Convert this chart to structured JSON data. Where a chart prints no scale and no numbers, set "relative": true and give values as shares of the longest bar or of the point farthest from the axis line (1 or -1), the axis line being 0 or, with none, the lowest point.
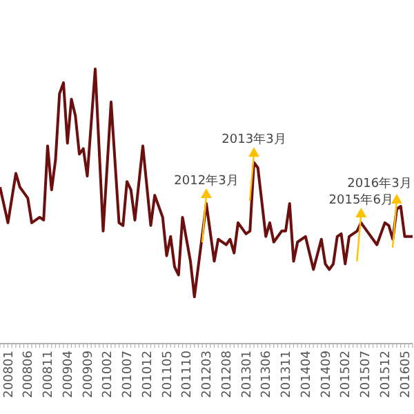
{
  "chart_data": {
    "type": "line",
    "relative": true,
    "x": [
      "2007-11",
      "2008-01",
      "2008-03",
      "2008-04",
      "2008-06",
      "2008-07",
      "2008-09",
      "2008-10",
      "2008-11",
      "2008-12",
      "2009-01",
      "2009-02",
      "2009-03",
      "2009-04",
      "2009-05",
      "2009-06",
      "2009-07",
      "2009-08",
      "2009-09",
      "2009-11",
      "2010-01",
      "2010-03",
      "2010-05",
      "2010-06",
      "2010-07",
      "2010-08",
      "2010-09",
      "2010-11",
      "2011-01",
      "2011-02",
      "2011-04",
      "2011-05",
      "2011-06",
      "2011-07",
      "2011-08",
      "2011-09",
      "2011-11",
      "2011-12",
      "2012-03",
      "2012-05",
      "2012-06",
      "2012-08",
      "2012-09",
      "2012-10",
      "2012-11",
      "2013-01",
      "2013-02",
      "2013-03",
      "2013-04",
      "2013-06",
      "2013-07",
      "2013-08",
      "2013-10",
      "2013-11",
      "2013-12",
      "2014-01",
      "2014-02",
      "2014-04",
      "2014-06",
      "2014-08",
      "2014-09",
      "2014-10",
      "2014-11",
      "2014-12",
      "2015-01",
      "2015-02",
      "2015-03",
      "2015-05",
      "2015-06",
      "2015-07",
      "2015-08",
      "2015-10",
      "2015-12",
      "2016-01",
      "2016-02",
      "2016-03",
      "2016-04",
      "2016-05",
      "2016-07"
    ],
    "series": [
      {
        "color": "#6b0f0f",
        "values": [
          0.57,
          0.44,
          0.62,
          0.57,
          0.53,
          0.44,
          0.46,
          0.45,
          0.72,
          0.56,
          0.67,
          0.91,
          0.95,
          0.73,
          0.89,
          0.83,
          0.69,
          0.71,
          0.61,
          1.0,
          0.41,
          0.88,
          0.44,
          0.43,
          0.59,
          0.56,
          0.45,
          0.72,
          0.43,
          0.54,
          0.46,
          0.32,
          0.39,
          0.28,
          0.25,
          0.46,
          0.3,
          0.17,
          0.51,
          0.3,
          0.38,
          0.36,
          0.38,
          0.33,
          0.44,
          0.4,
          0.41,
          0.66,
          0.64,
          0.39,
          0.44,
          0.37,
          0.41,
          0.41,
          0.51,
          0.3,
          0.37,
          0.39,
          0.27,
          0.38,
          0.29,
          0.27,
          0.29,
          0.39,
          0.4,
          0.29,
          0.39,
          0.41,
          0.44,
          0.42,
          0.4,
          0.36,
          0.44,
          0.43,
          0.38,
          0.49,
          0.5,
          0.39,
          0.39
        ]
      }
    ],
    "xlim": [
      "2007-11",
      "2016-07"
    ],
    "xticks": [
      {
        "value": "2008-01",
        "label": "200801"
      },
      {
        "value": "2008-06",
        "label": "200806"
      },
      {
        "value": "2008-11",
        "label": "200811"
      },
      {
        "value": "2009-04",
        "label": "200904"
      },
      {
        "value": "2009-09",
        "label": "200909"
      },
      {
        "value": "2010-02",
        "label": "201002"
      },
      {
        "value": "2010-07",
        "label": "201007"
      },
      {
        "value": "2010-12",
        "label": "201012"
      },
      {
        "value": "2011-05",
        "label": "201105"
      },
      {
        "value": "2011-10",
        "label": "201110"
      },
      {
        "value": "2012-03",
        "label": "201203"
      },
      {
        "value": "2012-08",
        "label": "201208"
      },
      {
        "value": "2013-01",
        "label": "201301"
      },
      {
        "value": "2013-06",
        "label": "201306"
      },
      {
        "value": "2013-11",
        "label": "201311"
      },
      {
        "value": "2014-04",
        "label": "201404"
      },
      {
        "value": "2014-09",
        "label": "201409"
      },
      {
        "value": "2015-02",
        "label": "201502"
      },
      {
        "value": "2015-07",
        "label": "201507"
      },
      {
        "value": "2015-12",
        "label": "201512"
      },
      {
        "value": "2016-05",
        "label": "201605"
      }
    ],
    "annotations": [
      {
        "text": "2012年3月",
        "x": "2012-03",
        "y": 0.51
      },
      {
        "text": "2013年3月",
        "x": "2013-03",
        "y": 0.66
      },
      {
        "text": "2015年6月",
        "x": "2015-06",
        "y": 0.44
      },
      {
        "text": "2016年3月",
        "x": "2016-03",
        "y": 0.49
      }
    ],
    "marker": "none",
    "line_style": "solid"
  }
}
